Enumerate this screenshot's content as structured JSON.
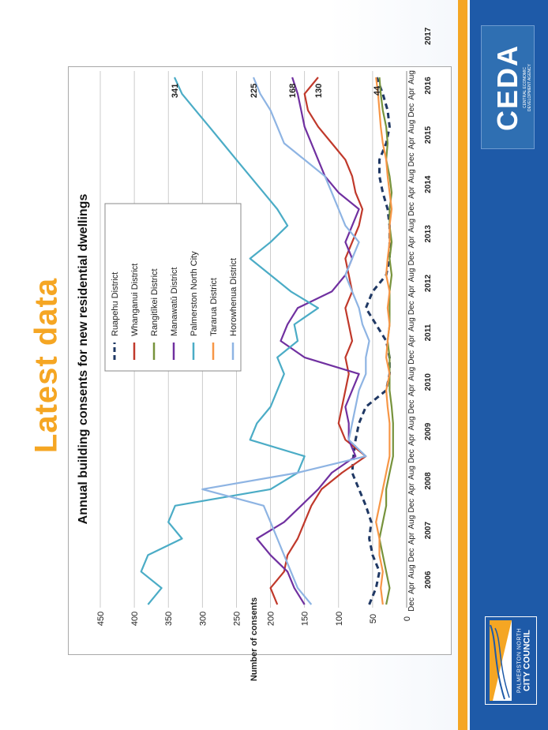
{
  "slide": {
    "title": "Latest data"
  },
  "logos": {
    "ceda": {
      "name": "CEDA",
      "tagline_1": "CENTRAL ECONOMIC",
      "tagline_2": "DEVELOPMENT AGENCY"
    },
    "council": {
      "line_1": "PALMERSTON NORTH",
      "line_2": "CITY COUNCIL"
    }
  },
  "colors": {
    "accent": "#f5a623",
    "brand_blue": "#1e5aa8"
  },
  "chart_data": {
    "type": "line",
    "title": "Annual building consents for new residential dwellings",
    "ylabel": "Number of consents",
    "ylim": [
      0,
      450
    ],
    "yticks": [
      0,
      50,
      100,
      150,
      200,
      250,
      300,
      350,
      400,
      450
    ],
    "grid": true,
    "legend_position": "top-center",
    "x_tick_labels": [
      "Dec",
      "Apr",
      "Aug",
      "Dec",
      "Apr",
      "Aug",
      "Dec",
      "Apr",
      "Aug",
      "Dec",
      "Apr",
      "Aug",
      "Dec",
      "Apr",
      "Aug",
      "Dec",
      "Apr",
      "Aug",
      "Dec",
      "Apr",
      "Aug",
      "Dec",
      "Apr",
      "Aug",
      "Dec",
      "Apr",
      "Aug",
      "Dec",
      "Apr",
      "Aug",
      "Dec",
      "Apr",
      "Aug"
    ],
    "year_labels": [
      "2006",
      "2007",
      "2008",
      "2009",
      "2010",
      "2011",
      "2012",
      "2013",
      "2014",
      "2015",
      "2016",
      "2017"
    ],
    "end_labels": [
      "341",
      "225",
      "168",
      "130",
      "44"
    ],
    "series": [
      {
        "name": "Ruapehu District",
        "color": "#1f3864",
        "dash": true,
        "values": [
          55,
          45,
          40,
          50,
          55,
          52,
          60,
          70,
          80,
          78,
          75,
          70,
          60,
          30,
          25,
          25,
          30,
          45,
          60,
          50,
          30,
          25,
          25,
          25,
          28,
          35,
          40,
          40,
          30,
          25,
          28,
          35,
          44
        ]
      },
      {
        "name": "Whanganui District",
        "color": "#c0392b",
        "dash": false,
        "values": [
          190,
          200,
          180,
          175,
          160,
          150,
          140,
          125,
          95,
          60,
          90,
          100,
          95,
          90,
          85,
          90,
          80,
          85,
          90,
          80,
          85,
          90,
          80,
          70,
          65,
          75,
          80,
          90,
          110,
          130,
          145,
          150,
          130
        ]
      },
      {
        "name": "Rangitīkei District",
        "color": "#77933c",
        "dash": false,
        "values": [
          30,
          25,
          30,
          35,
          40,
          35,
          30,
          30,
          25,
          20,
          20,
          20,
          22,
          25,
          25,
          25,
          28,
          25,
          25,
          25,
          22,
          25,
          22,
          25,
          25,
          22,
          25,
          30,
          28,
          30,
          35,
          38,
          40
        ]
      },
      {
        "name": "Manawatū District",
        "color": "#7030a0",
        "dash": false,
        "values": [
          150,
          165,
          175,
          200,
          220,
          180,
          155,
          130,
          110,
          75,
          85,
          85,
          90,
          80,
          70,
          150,
          185,
          175,
          160,
          110,
          90,
          80,
          90,
          80,
          70,
          100,
          120,
          130,
          140,
          150,
          155,
          160,
          168
        ]
      },
      {
        "name": "Palmerston North City",
        "color": "#4bacc6",
        "dash": false,
        "values": [
          380,
          360,
          390,
          380,
          330,
          350,
          340,
          200,
          160,
          150,
          230,
          220,
          200,
          190,
          180,
          190,
          160,
          165,
          130,
          170,
          200,
          230,
          200,
          175,
          190,
          210,
          230,
          250,
          270,
          290,
          310,
          330,
          341
        ]
      },
      {
        "name": "Tararua District",
        "color": "#f79646",
        "dash": false,
        "values": [
          35,
          38,
          35,
          40,
          40,
          45,
          40,
          35,
          30,
          25,
          25,
          25,
          28,
          30,
          25,
          30,
          28,
          25,
          28,
          25,
          30,
          28,
          25,
          25,
          22,
          25,
          28,
          30,
          35,
          38,
          40,
          42,
          45
        ]
      },
      {
        "name": "Horowhenua District",
        "color": "#8eb4e3",
        "dash": false,
        "values": [
          140,
          160,
          170,
          180,
          190,
          200,
          210,
          300,
          160,
          60,
          85,
          80,
          75,
          70,
          60,
          60,
          55,
          65,
          70,
          80,
          90,
          80,
          70,
          90,
          100,
          110,
          120,
          150,
          180,
          190,
          200,
          215,
          225
        ]
      }
    ]
  }
}
